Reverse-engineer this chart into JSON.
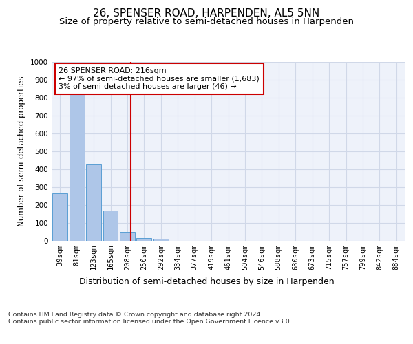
{
  "title": "26, SPENSER ROAD, HARPENDEN, AL5 5NN",
  "subtitle": "Size of property relative to semi-detached houses in Harpenden",
  "xlabel": "Distribution of semi-detached houses by size in Harpenden",
  "ylabel": "Number of semi-detached properties",
  "categories": [
    "39sqm",
    "81sqm",
    "123sqm",
    "165sqm",
    "208sqm",
    "250sqm",
    "292sqm",
    "334sqm",
    "377sqm",
    "419sqm",
    "461sqm",
    "504sqm",
    "546sqm",
    "588sqm",
    "630sqm",
    "673sqm",
    "715sqm",
    "757sqm",
    "799sqm",
    "842sqm",
    "884sqm"
  ],
  "values": [
    265,
    825,
    425,
    170,
    50,
    15,
    10,
    0,
    0,
    0,
    0,
    0,
    0,
    0,
    0,
    0,
    0,
    0,
    0,
    0,
    0
  ],
  "bar_color": "#aec6e8",
  "bar_edge_color": "#5a9fd4",
  "grid_color": "#d0d8e8",
  "background_color": "#eef2fa",
  "vline_color": "#cc0000",
  "annotation_text": "26 SPENSER ROAD: 216sqm\n← 97% of semi-detached houses are smaller (1,683)\n3% of semi-detached houses are larger (46) →",
  "annotation_box_color": "#ffffff",
  "annotation_box_edge": "#cc0000",
  "ylim": [
    0,
    1000
  ],
  "yticks": [
    0,
    100,
    200,
    300,
    400,
    500,
    600,
    700,
    800,
    900,
    1000
  ],
  "footer": "Contains HM Land Registry data © Crown copyright and database right 2024.\nContains public sector information licensed under the Open Government Licence v3.0.",
  "title_fontsize": 11,
  "subtitle_fontsize": 9.5,
  "tick_fontsize": 7.5,
  "ylabel_fontsize": 8.5,
  "xlabel_fontsize": 9,
  "annotation_fontsize": 8
}
